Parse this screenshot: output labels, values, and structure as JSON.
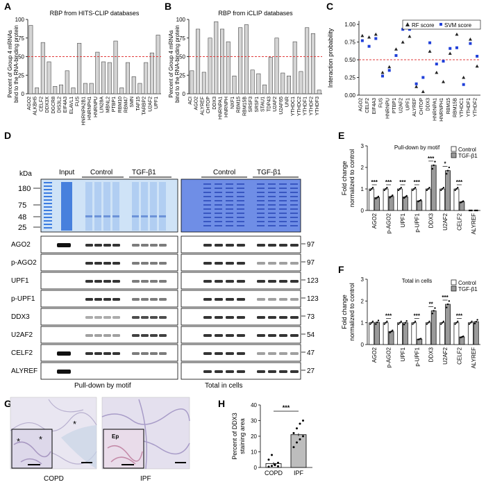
{
  "panels": {
    "A": "A",
    "B": "B",
    "C": "C",
    "D": "D",
    "E": "E",
    "F": "F",
    "G": "G",
    "H": "H"
  },
  "ylabel_ab_1": "Percent of Group 4 mRNAs",
  "ylabel_ab_2": "bind to the RNA-binding protein",
  "colors": {
    "bar_fill": "#d4d4d4",
    "threshold": "#e23a3a",
    "rf": "#222222",
    "svm": "#1f3fd9",
    "tgf": "#9a9a9a",
    "control": "#ffffff"
  },
  "chart_data": [
    {
      "id": "A",
      "type": "bar",
      "title": "RBP from HITS-CLIP databases",
      "categories": [
        "AGO2",
        "ALKBH5",
        "CELF2",
        "DDX3X",
        "DGCR8",
        "DIS3L2",
        "EIF4A3",
        "ELAVL1",
        "FUS",
        "HNRNPA2B1",
        "HNRNPH1",
        "HNRNPU",
        "LIN28A",
        "MBNL2",
        "PTBP1",
        "RBM10",
        "RBM47",
        "SMN",
        "TAF15",
        "TARBP2",
        "U2AF2",
        "UPF1"
      ],
      "values": [
        92,
        8,
        69,
        43,
        10,
        12,
        31,
        8,
        68,
        14,
        14,
        56,
        43,
        42,
        71,
        8,
        42,
        23,
        14,
        42,
        55,
        79
      ],
      "yticks": [
        "0",
        "25",
        "50",
        "75",
        "100"
      ],
      "ylim": [
        0,
        100
      ],
      "threshold": 50
    },
    {
      "id": "B",
      "type": "bar",
      "title": "RBP from iCLIP databases",
      "categories": [
        "ACI",
        "AGO2",
        "ALYREF",
        "CHTOP",
        "DDX3",
        "HNRNPA1",
        "HNRNPH",
        "NXF1",
        "RBM15",
        "RBM15B",
        "SRSF3",
        "SRSF1",
        "STAU1",
        "TDP43",
        "U2AF2",
        "U2AF65",
        "UNR",
        "YTHDC1",
        "YTHDC2",
        "YTHDF1",
        "YTHDF2",
        "YTHDF3"
      ],
      "values": [
        31,
        87,
        29,
        75,
        97,
        87,
        70,
        24,
        89,
        93,
        32,
        27,
        12,
        49,
        75,
        28,
        24,
        70,
        30,
        89,
        81,
        5
      ],
      "yticks": [
        "0",
        "25",
        "50",
        "75",
        "100"
      ],
      "ylim": [
        0,
        100
      ],
      "threshold": 50
    },
    {
      "id": "C",
      "type": "scatter",
      "ylabel": "Interaction probability",
      "legend": [
        "RF score",
        "SVM score"
      ],
      "categories": [
        "AGO2",
        "CELF2",
        "EIF4A3",
        "FUS",
        "HNRNPU",
        "PTBP1",
        "U2AF2",
        "UPF1",
        "ALYREF",
        "CHTOP",
        "DDX3",
        "HNRNPA1",
        "HNRNPH1",
        "RBM15",
        "RBM15B",
        "YTHDC1",
        "YTHDF1",
        "YTHDF2"
      ],
      "rf": [
        0.84,
        0.82,
        0.86,
        0.32,
        0.4,
        0.65,
        0.75,
        0.83,
        0.12,
        0.05,
        0.62,
        0.32,
        0.19,
        0.59,
        0.86,
        0.25,
        0.79,
        0.41
      ],
      "svm": [
        0.77,
        0.69,
        0.8,
        0.27,
        0.35,
        0.56,
        0.93,
        0.93,
        0.16,
        0.25,
        0.74,
        0.44,
        0.48,
        0.66,
        0.67,
        0.15,
        0.73,
        0.55
      ],
      "yticks": [
        "0.00",
        "0.25",
        "0.50",
        "0.75",
        "1.00"
      ],
      "ylim": [
        0,
        1.05
      ],
      "threshold": 0.5
    },
    {
      "id": "E",
      "type": "bar",
      "title": "Pull-down by motif",
      "ylabel": "Fold change normalized to control",
      "legend": [
        "Control",
        "TGF-β1"
      ],
      "categories": [
        "AGO2",
        "p-AGO2",
        "UPF1",
        "p-UPF1",
        "DDX3",
        "U2AF2",
        "CELF2",
        "ALYREF"
      ],
      "series": [
        {
          "name": "Control",
          "values": [
            1.0,
            1.0,
            1.0,
            1.0,
            1.0,
            1.0,
            1.0,
            0.0
          ]
        },
        {
          "name": "TGF-β1",
          "values": [
            0.6,
            0.65,
            0.63,
            0.45,
            2.1,
            1.85,
            0.4,
            0.0
          ]
        }
      ],
      "significance": [
        "***",
        "***",
        "***",
        "***",
        "***",
        "*",
        "***",
        ""
      ],
      "yticks": [
        "0",
        "1",
        "2",
        "3"
      ],
      "ylim": [
        0,
        3
      ]
    },
    {
      "id": "F",
      "type": "bar",
      "title": "Total in cells",
      "ylabel": "Fold change normalized to control",
      "legend": [
        "Control",
        "TGF-β1"
      ],
      "categories": [
        "AGO2",
        "p-AGO2",
        "UPF1",
        "p-UPF1",
        "DDX3",
        "U2AF2",
        "CELF2",
        "ALYREF"
      ],
      "series": [
        {
          "name": "Control",
          "values": [
            1.0,
            1.0,
            1.0,
            1.0,
            1.0,
            1.0,
            1.0,
            1.0
          ]
        },
        {
          "name": "TGF-β1",
          "values": [
            1.02,
            0.6,
            1.0,
            0.25,
            1.55,
            1.85,
            0.35,
            1.05
          ]
        }
      ],
      "significance": [
        "",
        "***",
        "",
        "***",
        "**",
        "***",
        "***",
        ""
      ],
      "yticks": [
        "0",
        "1",
        "2",
        "3"
      ],
      "ylim": [
        0,
        3
      ]
    },
    {
      "id": "H",
      "type": "bar",
      "ylabel": "Percent of DDX3 staining area",
      "categories": [
        "COPD",
        "IPF"
      ],
      "values": [
        2.5,
        21
      ],
      "yticks": [
        "0",
        "10",
        "20",
        "30",
        "40"
      ],
      "ylim": [
        0,
        40
      ],
      "significance": "***"
    }
  ],
  "blot": {
    "kda_label": "kDa",
    "markers": [
      "180",
      "75",
      "48",
      "25"
    ],
    "input_label": "Input",
    "control_label": "Control",
    "tgf_label": "TGF-β1",
    "rows": [
      {
        "name": "AGO2",
        "kda": "97"
      },
      {
        "name": "p-AGO2",
        "kda": "97"
      },
      {
        "name": "UPF1",
        "kda": "123"
      },
      {
        "name": "p-UPF1",
        "kda": "123"
      },
      {
        "name": "DDX3",
        "kda": "73"
      },
      {
        "name": "U2AF2",
        "kda": "54"
      },
      {
        "name": "CELF2",
        "kda": "47"
      },
      {
        "name": "ALYREF",
        "kda": "27"
      }
    ],
    "caption_left": "Pull-down by motif",
    "caption_right": "Total in cells"
  },
  "histology": {
    "copd_label": "COPD",
    "ipf_label": "IPF",
    "asterisk": "*",
    "ep_label": "Ep"
  }
}
